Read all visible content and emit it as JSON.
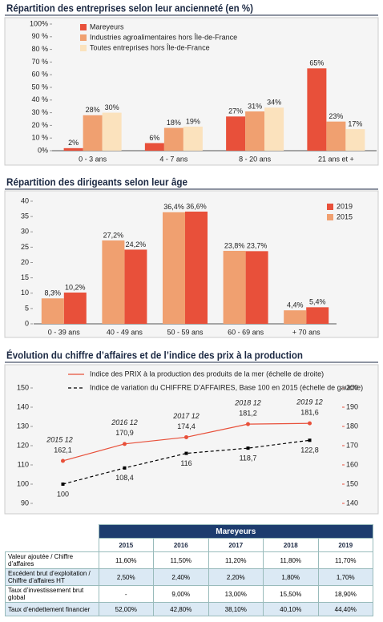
{
  "chart_data": [
    {
      "type": "bar",
      "title": "Répartition des entreprises selon leur ancienneté (en %)",
      "categories": [
        "0 - 3 ans",
        "4 - 7 ans",
        "8 - 20 ans",
        "21 ans et +"
      ],
      "series": [
        {
          "name": "Mareyeurs",
          "color": "#e8503a",
          "values": [
            2,
            6,
            27,
            65
          ],
          "value_labels": [
            "2%",
            "6%",
            "27%",
            "65%"
          ]
        },
        {
          "name": "Industries agroalimentaires hors Île-de-France",
          "color": "#f0a070",
          "values": [
            28,
            18,
            31,
            23
          ],
          "value_labels": [
            "28%",
            "18%",
            "31%",
            "23%"
          ]
        },
        {
          "name": "Toutes entreprises hors Île-de-France",
          "color": "#fbe2bd",
          "values": [
            30,
            19,
            34,
            17
          ],
          "value_labels": [
            "30%",
            "19%",
            "34%",
            "17%"
          ]
        }
      ],
      "ylim": [
        0,
        100
      ],
      "yticks": [
        {
          "value": 0,
          "label": "0%"
        },
        {
          "value": 10,
          "label": "10 %"
        },
        {
          "value": 20,
          "label": "20 %"
        },
        {
          "value": 30,
          "label": "30 %"
        },
        {
          "value": 40,
          "label": "40 %"
        },
        {
          "value": 50,
          "label": "50 %"
        },
        {
          "value": 60,
          "label": "60 %"
        },
        {
          "value": 70,
          "label": "70 %"
        },
        {
          "value": 80,
          "label": "80 %"
        },
        {
          "value": 90,
          "label": "90 %"
        },
        {
          "value": 100,
          "label": "100%"
        }
      ],
      "legend": "top-left"
    },
    {
      "type": "bar",
      "title": "Répartition des dirigeants selon leur âge",
      "categories": [
        "0 - 39 ans",
        "40 - 49 ans",
        "50 - 59 ans",
        "60 - 69 ans",
        "+ 70 ans"
      ],
      "series": [
        {
          "name": "2019",
          "color": "#e8503a",
          "values": [
            10.2,
            24.2,
            36.6,
            23.7,
            5.4
          ],
          "value_labels": [
            "10,2%",
            "24,2%",
            "36,6%",
            "23,7%",
            "5,4%"
          ]
        },
        {
          "name": "2015",
          "color": "#f0a070",
          "values": [
            8.3,
            27.2,
            36.4,
            23.8,
            4.4
          ],
          "value_labels": [
            "8,3%",
            "27,2%",
            "36,4%",
            "23,8%",
            "4,4%"
          ]
        }
      ],
      "ylim": [
        0,
        40
      ],
      "yticks": [
        0,
        5,
        10,
        15,
        20,
        25,
        30,
        35,
        40
      ],
      "legend": "top-right"
    },
    {
      "type": "line",
      "title": "Évolution du chiffre d’affaires et de l’indice des prix à la production",
      "categories": [
        "2015 12",
        "2016 12",
        "2017 12",
        "2018 12",
        "2019 12"
      ],
      "series": [
        {
          "name": "Indice des PRIX à la production des produits de la mer (échelle de droite)",
          "color": "#e8503a",
          "axis": "y2",
          "style": "solid",
          "marker": "circle",
          "values": [
            162.1,
            170.9,
            174.4,
            181.2,
            181.6
          ],
          "value_labels": [
            "162,1",
            "170,9",
            "174,4",
            "181,2",
            "181,6"
          ]
        },
        {
          "name": "Indice de variation du CHIFFRE D’AFFAIRES, Base 100 en 2015 (échelle de gauche)",
          "color": "#000000",
          "style": "dashed",
          "marker": "square",
          "values": [
            100,
            108.4,
            116,
            118.7,
            122.8
          ],
          "value_labels": [
            "100",
            "108,4",
            "116",
            "118,7",
            "122,8"
          ]
        }
      ],
      "ylim": [
        90,
        150
      ],
      "yticks": [
        90,
        100,
        110,
        120,
        130,
        140,
        150
      ],
      "y2lim": [
        140,
        200
      ],
      "y2ticks": [
        140,
        150,
        160,
        170,
        180,
        190,
        200
      ],
      "legend": "top"
    }
  ],
  "table": {
    "group_header": "Mareyeurs",
    "columns": [
      "2015",
      "2016",
      "2017",
      "2018",
      "2019"
    ],
    "rows": [
      [
        "Valeur ajoutée / Chiffre d’affaires",
        "11,60%",
        "11,50%",
        "11,20%",
        "11,80%",
        "11,70%"
      ],
      [
        "Excédent brut d’exploitation / Chiffre d’affaires HT",
        "2,50%",
        "2,40%",
        "2,20%",
        "1,80%",
        "1,70%"
      ],
      [
        "Taux d’investissement brut global",
        "-",
        "9,00%",
        "13,00%",
        "15,50%",
        "18,90%"
      ],
      [
        "Taux d’endettement financier",
        "52,00%",
        "42,80%",
        "38,10%",
        "40,10%",
        "44,40%"
      ]
    ]
  }
}
